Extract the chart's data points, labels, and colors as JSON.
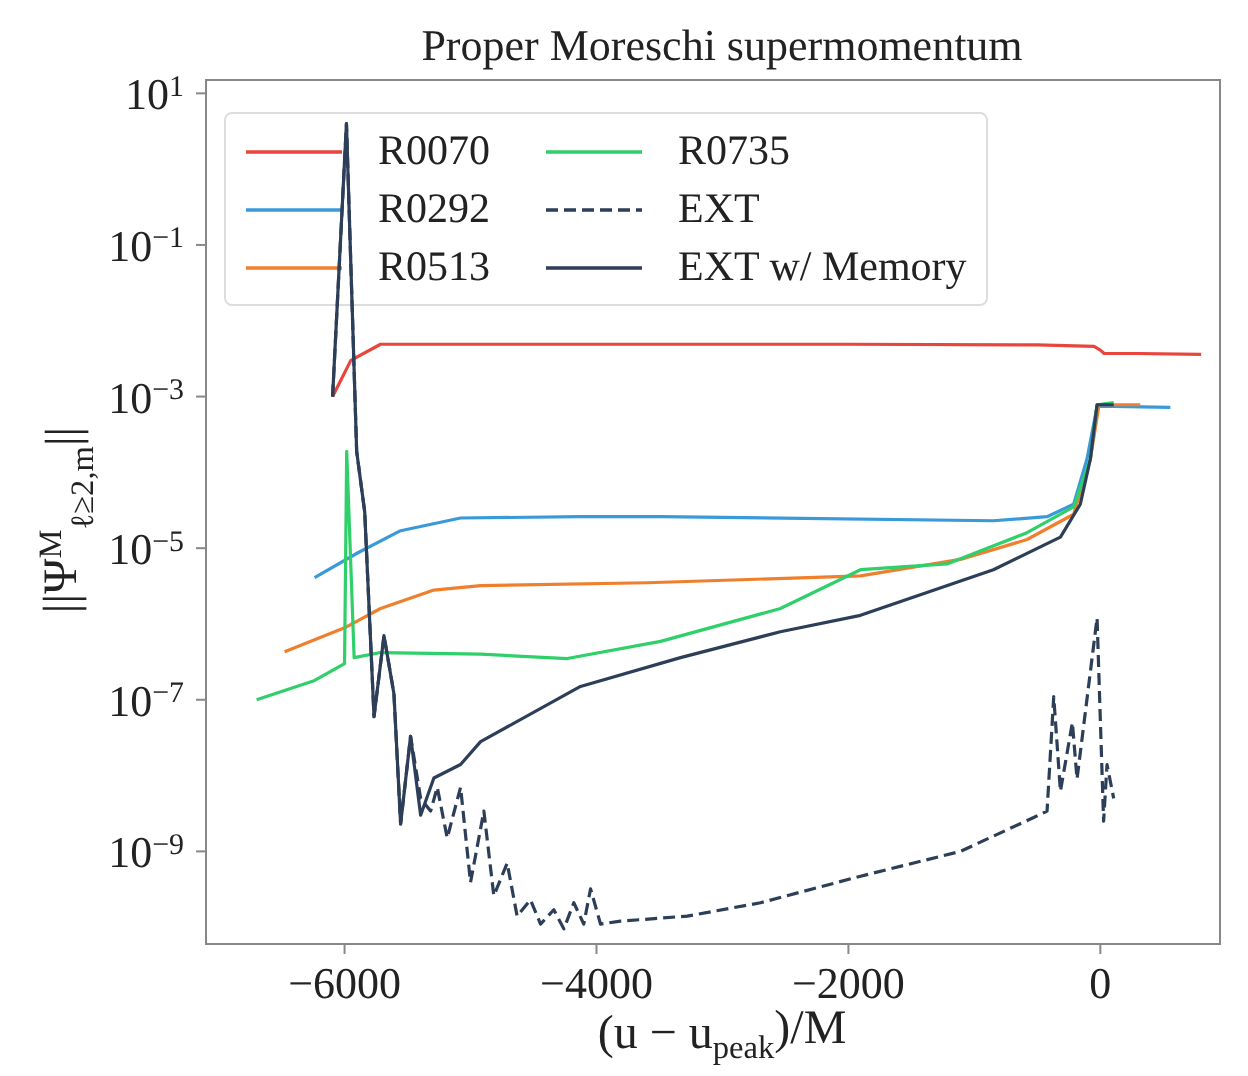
{
  "chart_data": {
    "type": "line",
    "title": "Proper Moreschi supermomentum",
    "xlabel": "(u − u$_{peak}$)/M",
    "ylabel": "||Ψ$^{M}$$_{ℓ≥2,m}$||",
    "log": "y",
    "grid": false,
    "legend": "top left",
    "xlim": [
      -7100,
      950
    ],
    "xticks": [
      {
        "value": -6000,
        "label": "−6000"
      },
      {
        "value": -4000,
        "label": "−4000"
      },
      {
        "value": -2000,
        "label": "−2000"
      },
      0
    ],
    "ylim": [
      6e-11,
      15
    ],
    "yticks": [
      {
        "value": 10,
        "label": "10$^{1}$"
      },
      {
        "value": 0.1,
        "label": "10$^{−1}$"
      },
      {
        "value": 0.001,
        "label": "10$^{−3}$"
      },
      {
        "value": 1e-05,
        "label": "10$^{−5}$"
      },
      {
        "value": 1e-07,
        "label": "10$^{−7}$"
      },
      {
        "value": 1e-09,
        "label": "10$^{−9}$"
      }
    ],
    "series": [
      {
        "name": "R0070",
        "color": "#e8453c",
        "line_style": "solid",
        "x": [
          -6095,
          -5950,
          -5714,
          -4000,
          -2000,
          -500,
          -50,
          0,
          30,
          300,
          800
        ],
        "values": [
          0.001,
          0.003,
          0.0049,
          0.0049,
          0.0049,
          0.0048,
          0.0046,
          0.0041,
          0.0037,
          0.0037,
          0.0036
        ]
      },
      {
        "name": "R0292",
        "color": "#3a9ad9",
        "line_style": "solid",
        "x": [
          -6238,
          -5894,
          -5555,
          -5079,
          -4127,
          -3491,
          -849,
          -423,
          -212,
          -106,
          -26,
          100,
          556
        ],
        "values": [
          4.1e-06,
          8.7e-06,
          1.7e-05,
          2.5e-05,
          2.6e-05,
          2.6e-05,
          2.3e-05,
          2.6e-05,
          3.8e-05,
          0.00015,
          0.00074,
          0.00074,
          0.00072
        ]
      },
      {
        "name": "R0513",
        "color": "#f07f2d",
        "line_style": "solid",
        "x": [
          -6476,
          -6000,
          -5714,
          -5291,
          -4920,
          -3597,
          -1904,
          -1111,
          -582,
          -212,
          -79,
          -10,
          317
        ],
        "values": [
          4.3e-07,
          8.9e-07,
          1.6e-06,
          2.8e-06,
          3.2e-06,
          3.5e-06,
          4.3e-06,
          7.1e-06,
          1.3e-05,
          2.8e-05,
          0.00015,
          0.00078,
          0.00078
        ]
      },
      {
        "name": "R0735",
        "color": "#2fcf6a",
        "line_style": "solid",
        "x": [
          -6698,
          -6237,
          -6000,
          -5983,
          -5924,
          -5714,
          -4920,
          -4232,
          -3491,
          -2540,
          -1904,
          -1217,
          -582,
          -212,
          -79,
          -26,
          106
        ],
        "values": [
          1e-07,
          1.8e-07,
          3e-07,
          0.00019,
          3.6e-07,
          4.2e-07,
          4e-07,
          3.5e-07,
          5.9e-07,
          1.6e-06,
          5.2e-06,
          6.2e-06,
          1.6e-05,
          3.5e-05,
          0.00015,
          0.00078,
          0.00083
        ]
      },
      {
        "name": "EXT",
        "color": "#2c3e58",
        "line_style": "dashed",
        "x": [
          -6095,
          -5985,
          -5904,
          -5840,
          -5766,
          -5687,
          -5608,
          -5555,
          -5476,
          -5396,
          -5317,
          -5264,
          -5185,
          -5079,
          -5000,
          -4894,
          -4815,
          -4709,
          -4630,
          -4524,
          -4444,
          -4339,
          -4259,
          -4180,
          -4101,
          -4047,
          -3968,
          -3809,
          -3280,
          -2698,
          -1904,
          -1111,
          -529,
          -423,
          -370,
          -317,
          -222,
          -185,
          -26,
          26,
          53,
          106
        ],
        "values": [
          0.001,
          4,
          0.00019,
          3e-05,
          6e-08,
          7e-07,
          1.2e-07,
          2.3e-09,
          3.3e-08,
          5e-09,
          3.4e-09,
          7e-09,
          1.5e-09,
          7e-09,
          3.9e-10,
          3.4e-09,
          2.6e-10,
          7e-10,
          1.4e-10,
          2.3e-10,
          1.1e-10,
          1.7e-10,
          9.5e-11,
          2.1e-10,
          1.1e-10,
          3.2e-10,
          1.1e-10,
          1.2e-10,
          1.4e-10,
          2.1e-10,
          4.7e-10,
          1e-09,
          2.8e-09,
          3.4e-09,
          1.1e-07,
          6.2e-09,
          5e-08,
          9e-09,
          1.2e-06,
          2.5e-09,
          1.4e-08,
          5e-09
        ]
      },
      {
        "name": "EXT w/ Memory",
        "color": "#2c3e58",
        "line_style": "solid",
        "x": [
          -6095,
          -5985,
          -5904,
          -5840,
          -5766,
          -5687,
          -5608,
          -5555,
          -5476,
          -5396,
          -5291,
          -5079,
          -4920,
          -4127,
          -3333,
          -2540,
          -1904,
          -849,
          -317,
          -159,
          -79,
          -26,
          106
        ],
        "values": [
          0.001,
          4,
          0.00019,
          3e-05,
          6e-08,
          7e-07,
          1.2e-07,
          2.3e-09,
          3.3e-08,
          3e-09,
          9.3e-09,
          1.4e-08,
          2.8e-08,
          1.5e-07,
          3.6e-07,
          7.9e-07,
          1.3e-06,
          5.2e-06,
          1.4e-05,
          3.8e-05,
          0.00015,
          0.00078,
          0.00078
        ]
      }
    ]
  }
}
